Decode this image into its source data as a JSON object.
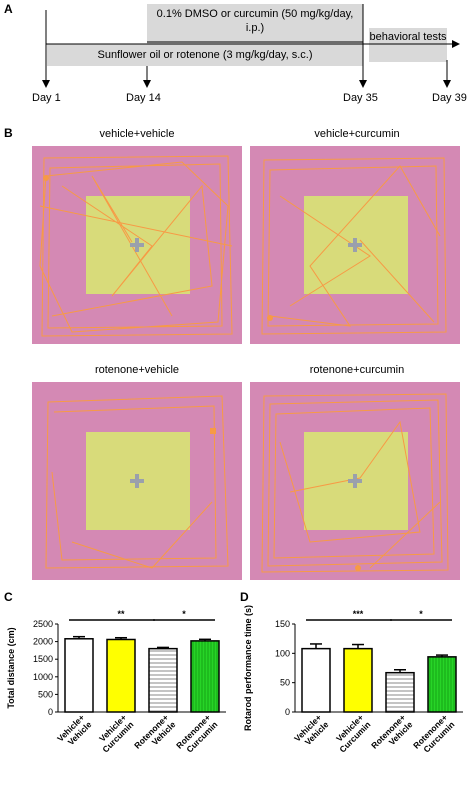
{
  "panels": {
    "a": "A",
    "b": "B",
    "c": "C",
    "d": "D"
  },
  "timeline": {
    "top_box": "0.1% DMSO or curcumin (50 mg/kg/day, i.p.)",
    "bottom_box": "Sunflower oil or rotenone (3 mg/kg/day, s.c.)",
    "right_box": "behavioral tests",
    "days": [
      "Day 1",
      "Day 14",
      "Day 35",
      "Day 39"
    ]
  },
  "open_field": {
    "titles": [
      "vehicle+vehicle",
      "vehicle+curcumin",
      "rotenone+vehicle",
      "rotenone+curcumin"
    ],
    "colors": {
      "arena": "#d489b4",
      "center": "#d8db7a",
      "track": "#f79a45"
    }
  },
  "chart_data": [
    {
      "type": "bar",
      "ylabel": "Total distance (cm)",
      "ylim": [
        0,
        2500
      ],
      "yticks": [
        "0",
        "500",
        "1000",
        "1500",
        "2000",
        "2500"
      ],
      "categories": [
        "Vehicle+ Vehicle",
        "Vehicle+ Curcumin",
        "Rotenone+ Vehicle",
        "Rotenone+ Curcumin"
      ],
      "cat_lines": [
        [
          "Vehicle+",
          "Vehicle"
        ],
        [
          "Vehicle+",
          "Curcumin"
        ],
        [
          "Rotenone+",
          "Vehicle"
        ],
        [
          "Rotenone+",
          "Curcumin"
        ]
      ],
      "values": [
        2080,
        2060,
        1800,
        2020
      ],
      "errors": [
        60,
        50,
        35,
        45
      ],
      "significance": [
        {
          "from": 0,
          "to": 2,
          "label": "**"
        },
        {
          "from": 2,
          "to": 3,
          "label": "*"
        }
      ]
    },
    {
      "type": "bar",
      "ylabel": "Rotarod performance time (s)",
      "ylim": [
        0,
        150
      ],
      "yticks": [
        "0",
        "50",
        "100",
        "150"
      ],
      "categories": [
        "Vehicle+ Vehicle",
        "Vehicle+ Curcumin",
        "Rotenone+ Vehicle",
        "Rotenone+ Curcumin"
      ],
      "cat_lines": [
        [
          "Vehicle+",
          "Vehicle"
        ],
        [
          "Vehicle+",
          "Curcumin"
        ],
        [
          "Rotenone+",
          "Vehicle"
        ],
        [
          "Rotenone+",
          "Curcumin"
        ]
      ],
      "values": [
        108,
        108,
        67,
        94
      ],
      "errors": [
        8,
        7,
        5,
        3
      ],
      "significance": [
        {
          "from": 0,
          "to": 2,
          "label": "***"
        },
        {
          "from": 2,
          "to": 3,
          "label": "*"
        }
      ]
    }
  ]
}
